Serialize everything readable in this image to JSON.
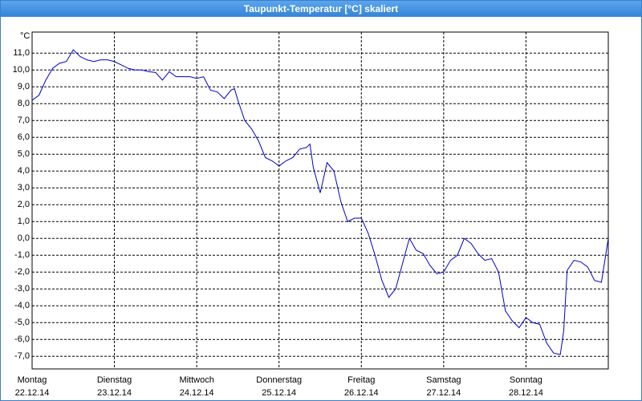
{
  "chart_data": {
    "type": "line",
    "title": "Taupunkt-Temperatur [°C] skaliert",
    "ylabel": "°C",
    "x": [
      0,
      2,
      4,
      6,
      8,
      10,
      12,
      14,
      16,
      18,
      20,
      22,
      24,
      26,
      28,
      30,
      32,
      34,
      36,
      38,
      40,
      42,
      44,
      46,
      48,
      50,
      52,
      54,
      56,
      58,
      59,
      60,
      62,
      64,
      66,
      68,
      70,
      72,
      74,
      76,
      78,
      80,
      81,
      82,
      84,
      86,
      88,
      90,
      92,
      94,
      96,
      98,
      100,
      102,
      104,
      106,
      108,
      110,
      112,
      114,
      116,
      118,
      120,
      122,
      124,
      126,
      128,
      130,
      132,
      134,
      136,
      138,
      140,
      142,
      144,
      146,
      148,
      150,
      152,
      154,
      155,
      156,
      158,
      160,
      162,
      164,
      166,
      168
    ],
    "series": [
      {
        "name": "Taupunkt",
        "color": "#0000cc",
        "values": [
          8.2,
          8.5,
          9.4,
          10.1,
          10.4,
          10.5,
          11.2,
          10.8,
          10.6,
          10.5,
          10.6,
          10.6,
          10.5,
          10.3,
          10.1,
          10.0,
          10.0,
          9.9,
          9.85,
          9.4,
          9.9,
          9.6,
          9.6,
          9.6,
          9.5,
          9.6,
          8.8,
          8.7,
          8.3,
          8.8,
          8.9,
          8.2,
          7.0,
          6.5,
          5.8,
          4.8,
          4.6,
          4.3,
          4.6,
          4.8,
          5.3,
          5.4,
          5.6,
          4.2,
          2.7,
          4.5,
          4.0,
          2.2,
          1.0,
          1.2,
          1.2,
          0.3,
          -1.0,
          -2.5,
          -3.5,
          -3.0,
          -1.5,
          0.0,
          -0.7,
          -0.9,
          -1.6,
          -2.1,
          -2.0,
          -1.3,
          -1.0,
          0.0,
          -0.3,
          -0.9,
          -1.3,
          -1.2,
          -2.0,
          -4.3,
          -4.9,
          -5.3,
          -4.7,
          -5.0,
          -5.1,
          -6.2,
          -6.8,
          -6.9,
          -5.5,
          -1.9,
          -1.3,
          -1.4,
          -1.7,
          -2.5,
          -2.6,
          0.0
        ]
      }
    ],
    "xlim": [
      0,
      168
    ],
    "xticks": [
      {
        "value": 0,
        "label": "Montag",
        "date": "22.12.14"
      },
      {
        "value": 24,
        "label": "Dienstag",
        "date": "23.12.14"
      },
      {
        "value": 48,
        "label": "Mittwoch",
        "date": "24.12.14"
      },
      {
        "value": 72,
        "label": "Donnerstag",
        "date": "25.12.14"
      },
      {
        "value": 96,
        "label": "Freitag",
        "date": "26.12.14"
      },
      {
        "value": 120,
        "label": "Samstag",
        "date": "27.12.14"
      },
      {
        "value": 144,
        "label": "Sonntag",
        "date": "28.12.14"
      }
    ],
    "ylim": [
      -7.75,
      12.25
    ],
    "yticks": [
      {
        "value": -7,
        "label": "-7,0"
      },
      {
        "value": -6,
        "label": "-6,0"
      },
      {
        "value": -5,
        "label": "-5,0"
      },
      {
        "value": -4,
        "label": "-4,0"
      },
      {
        "value": -3,
        "label": "-3,0"
      },
      {
        "value": -2,
        "label": "-2,0"
      },
      {
        "value": -1,
        "label": "-1,0"
      },
      {
        "value": 0,
        "label": "0,0"
      },
      {
        "value": 1,
        "label": "1,0"
      },
      {
        "value": 2,
        "label": "2,0"
      },
      {
        "value": 3,
        "label": "3,0"
      },
      {
        "value": 4,
        "label": "4,0"
      },
      {
        "value": 5,
        "label": "5,0"
      },
      {
        "value": 6,
        "label": "6,0"
      },
      {
        "value": 7,
        "label": "7,0"
      },
      {
        "value": 8,
        "label": "8,0"
      },
      {
        "value": 9,
        "label": "9,0"
      },
      {
        "value": 10,
        "label": "10,0"
      },
      {
        "value": 11,
        "label": "11,0"
      }
    ],
    "grid": true
  }
}
